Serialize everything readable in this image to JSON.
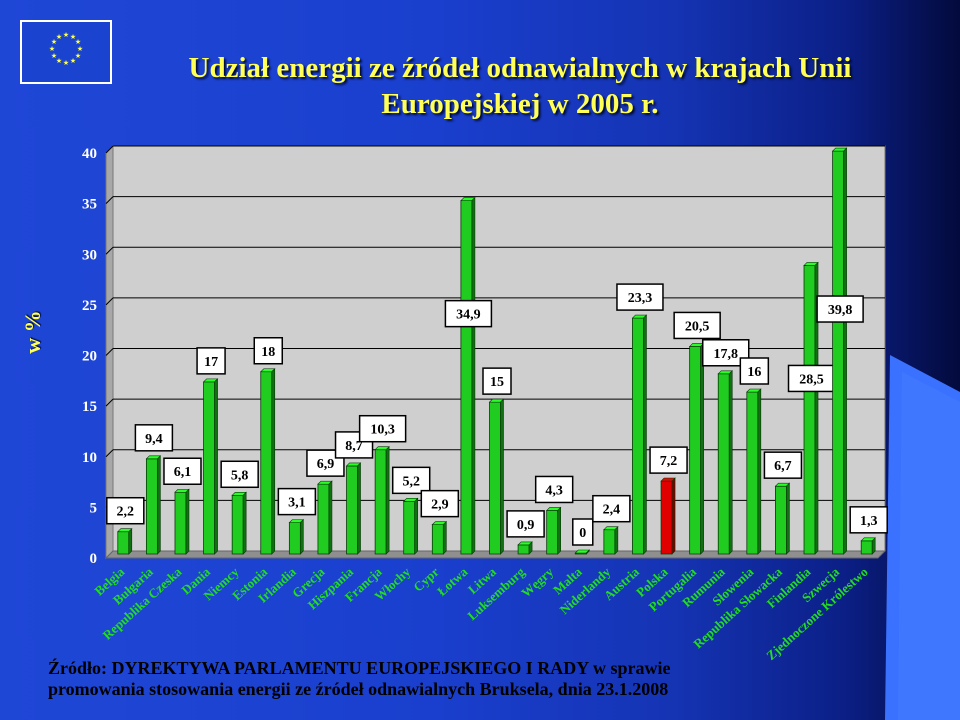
{
  "title_line1": "Udział energii ze źródeł odnawialnych w krajach Unii",
  "title_line2": "Europejskiej w 2005 r.",
  "source_line1": "Źródło: DYREKTYWA PARLAMENTU EUROPEJSKIEGO I RADY w sprawie",
  "source_line2": "promowania stosowania energii ze źródeł odnawialnych Bruksela, dnia 23.1.2008",
  "colors": {
    "title": "#ffff55",
    "bar": "#1fcc1f",
    "bar_highlight": "#e00000",
    "tick_label": "#ffffff",
    "category_label": "#22dd22"
  },
  "chart_data": {
    "type": "bar",
    "title": "Udział energii ze źródeł odnawialnych w krajach Unii Europejskiej w 2005 r.",
    "xlabel": "",
    "ylabel": "w %",
    "ylim": [
      0,
      40
    ],
    "yticks": [
      0,
      5,
      10,
      15,
      20,
      25,
      30,
      35,
      40
    ],
    "grid": true,
    "legend": "none",
    "categories": [
      "Belgia",
      "Bułgaria",
      "Republika Czeska",
      "Dania",
      "Niemcy",
      "Estonia",
      "Irlandia",
      "Grecja",
      "Hiszpania",
      "Francja",
      "Włochy",
      "Cypr",
      "Łotwa",
      "Litwa",
      "Luksemburg",
      "Węgry",
      "Malta",
      "Niderlandy",
      "Austria",
      "Polska",
      "Portugalia",
      "Rumunia",
      "Słowenia",
      "Republika Słowacka",
      "Finlandia",
      "Szwecja",
      "Zjednoczone Królestwo"
    ],
    "values": [
      2.2,
      9.4,
      6.1,
      17,
      5.8,
      18,
      3.1,
      6.9,
      8.7,
      10.3,
      5.2,
      2.9,
      34.9,
      15,
      0.9,
      4.3,
      0,
      2.4,
      23.3,
      7.2,
      20.5,
      17.8,
      16,
      6.7,
      28.5,
      39.8,
      1.3
    ],
    "data_labels": [
      "2,2",
      "9,4",
      "6,1",
      "17",
      "5,8",
      "18",
      "3,1",
      "6,9",
      "8,7",
      "10,3",
      "5,2",
      "2,9",
      "34,9",
      "15",
      "0,9",
      "4,3",
      "0",
      "2,4",
      "23,3",
      "7,2",
      "20,5",
      "17,8",
      "16",
      "6,7",
      "28,5",
      "39,8",
      "1,3"
    ],
    "highlighted": [
      "Polska"
    ]
  }
}
